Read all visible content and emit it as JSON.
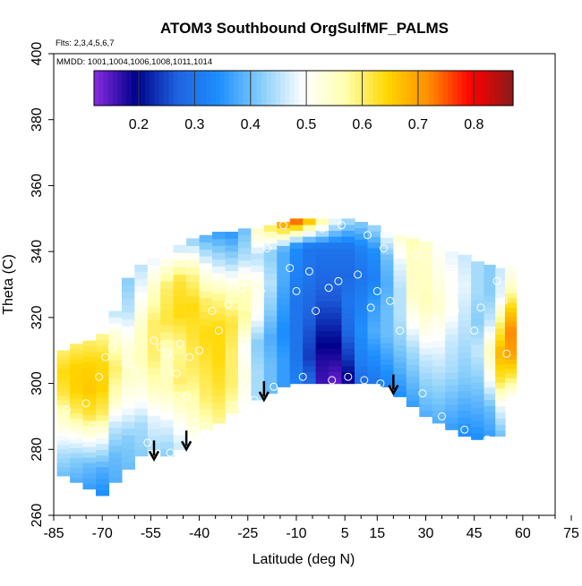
{
  "chart_data": {
    "type": "heatmap",
    "title": "ATOM3 Southbound OrgSulfMF_PALMS",
    "subtitle_flights": "Flts: 2,3,4,5,6,7",
    "subtitle_dates": "MMDD: 1001,1004,1006,1008,1011,1014",
    "xlabel": "Latitude (deg N)",
    "ylabel": "Theta (C)",
    "xlim": [
      -85,
      70
    ],
    "ylim": [
      260,
      400
    ],
    "x_ticks": [
      -85,
      -70,
      -55,
      -40,
      -25,
      -10,
      5,
      15,
      30,
      45,
      60,
      75
    ],
    "y_ticks": [
      260,
      280,
      300,
      320,
      340,
      360,
      380,
      400
    ],
    "colorbar": {
      "min": 0.12,
      "max": 0.87,
      "ticks": [
        0.2,
        0.3,
        0.4,
        0.5,
        0.6,
        0.7,
        0.8
      ],
      "tick_labels": [
        "0.2",
        "0.3",
        "0.4",
        "0.5",
        "0.6",
        "0.7",
        "0.8"
      ],
      "colors": [
        "#8a2be2",
        "#00008b",
        "#1e63e0",
        "#1e90ff",
        "#87cefa",
        "#ffffff",
        "#ffffb0",
        "#ffd700",
        "#ff8c00",
        "#ff0000",
        "#8b1a1a"
      ]
    },
    "field_columns": [
      {
        "lat": -82,
        "bottom": 272,
        "top": 310,
        "values": [
          0.4,
          0.44,
          0.5,
          0.56,
          0.62,
          0.64,
          0.6
        ]
      },
      {
        "lat": -78,
        "bottom": 270,
        "top": 312,
        "values": [
          0.38,
          0.42,
          0.5,
          0.6,
          0.65,
          0.65,
          0.6
        ]
      },
      {
        "lat": -74,
        "bottom": 268,
        "top": 313,
        "values": [
          0.36,
          0.4,
          0.5,
          0.62,
          0.66,
          0.65,
          0.6
        ]
      },
      {
        "lat": -70,
        "bottom": 266,
        "top": 315,
        "values": [
          0.34,
          0.38,
          0.48,
          0.6,
          0.65,
          0.64,
          0.58
        ]
      },
      {
        "lat": -66,
        "bottom": 270,
        "top": 322,
        "values": [
          0.38,
          0.4,
          0.46,
          0.56,
          0.6,
          0.55,
          0.45
        ]
      },
      {
        "lat": -62,
        "bottom": 274,
        "top": 332,
        "values": [
          0.4,
          0.42,
          0.5,
          0.55,
          0.52,
          0.45,
          0.42
        ]
      },
      {
        "lat": -58,
        "bottom": 278,
        "top": 336,
        "values": [
          0.42,
          0.44,
          0.52,
          0.56,
          0.55,
          0.5,
          0.45
        ]
      },
      {
        "lat": -54,
        "bottom": 280,
        "top": 338,
        "values": [
          0.44,
          0.48,
          0.56,
          0.6,
          0.6,
          0.55,
          0.48
        ]
      },
      {
        "lat": -50,
        "bottom": 278,
        "top": 340,
        "values": [
          0.42,
          0.48,
          0.56,
          0.55,
          0.62,
          0.6,
          0.48
        ]
      },
      {
        "lat": -46,
        "bottom": 280,
        "top": 342,
        "values": [
          0.46,
          0.52,
          0.6,
          0.58,
          0.64,
          0.62,
          0.45
        ]
      },
      {
        "lat": -42,
        "bottom": 283,
        "top": 344,
        "values": [
          0.5,
          0.56,
          0.6,
          0.62,
          0.64,
          0.58,
          0.42
        ]
      },
      {
        "lat": -38,
        "bottom": 286,
        "top": 345,
        "values": [
          0.55,
          0.6,
          0.62,
          0.64,
          0.6,
          0.5,
          0.38
        ]
      },
      {
        "lat": -34,
        "bottom": 288,
        "top": 346,
        "values": [
          0.58,
          0.62,
          0.64,
          0.64,
          0.58,
          0.46,
          0.36
        ]
      },
      {
        "lat": -30,
        "bottom": 291,
        "top": 346,
        "values": [
          0.56,
          0.6,
          0.6,
          0.62,
          0.55,
          0.44,
          0.35
        ]
      },
      {
        "lat": -26,
        "bottom": 293,
        "top": 347,
        "values": [
          0.5,
          0.52,
          0.5,
          0.58,
          0.55,
          0.45,
          0.4
        ]
      },
      {
        "lat": -22,
        "bottom": 295,
        "top": 347,
        "values": [
          0.44,
          0.44,
          0.42,
          0.5,
          0.52,
          0.45,
          0.55
        ]
      },
      {
        "lat": -18,
        "bottom": 297,
        "top": 348,
        "values": [
          0.4,
          0.4,
          0.38,
          0.42,
          0.45,
          0.42,
          0.62
        ]
      },
      {
        "lat": -14,
        "bottom": 299,
        "top": 349,
        "values": [
          0.36,
          0.36,
          0.34,
          0.36,
          0.38,
          0.38,
          0.72
        ]
      },
      {
        "lat": -10,
        "bottom": 300,
        "top": 350,
        "values": [
          0.32,
          0.3,
          0.3,
          0.3,
          0.32,
          0.34,
          0.78
        ]
      },
      {
        "lat": -6,
        "bottom": 300,
        "top": 350,
        "values": [
          0.28,
          0.24,
          0.26,
          0.28,
          0.3,
          0.3,
          0.7
        ]
      },
      {
        "lat": -2,
        "bottom": 300,
        "top": 350,
        "values": [
          0.16,
          0.18,
          0.22,
          0.26,
          0.28,
          0.3,
          0.6
        ]
      },
      {
        "lat": 2,
        "bottom": 300,
        "top": 350,
        "values": [
          0.14,
          0.18,
          0.22,
          0.26,
          0.28,
          0.3,
          0.5
        ]
      },
      {
        "lat": 6,
        "bottom": 300,
        "top": 350,
        "values": [
          0.18,
          0.24,
          0.28,
          0.3,
          0.28,
          0.3,
          0.45
        ]
      },
      {
        "lat": 10,
        "bottom": 300,
        "top": 349,
        "values": [
          0.28,
          0.32,
          0.34,
          0.32,
          0.3,
          0.32,
          0.42
        ]
      },
      {
        "lat": 14,
        "bottom": 300,
        "top": 348,
        "values": [
          0.3,
          0.34,
          0.38,
          0.36,
          0.32,
          0.34,
          0.44
        ]
      },
      {
        "lat": 18,
        "bottom": 299,
        "top": 346,
        "values": [
          0.32,
          0.36,
          0.4,
          0.4,
          0.38,
          0.4,
          0.5
        ]
      },
      {
        "lat": 22,
        "bottom": 296,
        "top": 345,
        "values": [
          0.34,
          0.38,
          0.42,
          0.45,
          0.45,
          0.48,
          0.54
        ]
      },
      {
        "lat": 26,
        "bottom": 293,
        "top": 344,
        "values": [
          0.36,
          0.4,
          0.44,
          0.5,
          0.55,
          0.55,
          0.56
        ]
      },
      {
        "lat": 30,
        "bottom": 290,
        "top": 343,
        "values": [
          0.38,
          0.42,
          0.46,
          0.52,
          0.56,
          0.55,
          0.54
        ]
      },
      {
        "lat": 34,
        "bottom": 288,
        "top": 342,
        "values": [
          0.38,
          0.42,
          0.46,
          0.5,
          0.54,
          0.52,
          0.5
        ]
      },
      {
        "lat": 38,
        "bottom": 286,
        "top": 340,
        "values": [
          0.36,
          0.4,
          0.44,
          0.46,
          0.5,
          0.5,
          0.48
        ]
      },
      {
        "lat": 42,
        "bottom": 284,
        "top": 339,
        "values": [
          0.34,
          0.38,
          0.42,
          0.44,
          0.46,
          0.48,
          0.46
        ]
      },
      {
        "lat": 46,
        "bottom": 283,
        "top": 337,
        "values": [
          0.34,
          0.38,
          0.42,
          0.46,
          0.42,
          0.44,
          0.44
        ]
      },
      {
        "lat": 50,
        "bottom": 284,
        "top": 336,
        "values": [
          0.36,
          0.4,
          0.5,
          0.56,
          0.46,
          0.42,
          0.42
        ]
      },
      {
        "lat": 53,
        "bottom": 284,
        "top": 335,
        "values": [
          0.4,
          0.48,
          0.62,
          0.68,
          0.6,
          0.48,
          0.46
        ]
      },
      {
        "lat": 56,
        "bottom": 296,
        "top": 336,
        "values": [
          0.5,
          0.62,
          0.7,
          0.72,
          0.65,
          0.55,
          0.5
        ]
      }
    ],
    "sample_points": [
      {
        "lat": -81,
        "theta": 292
      },
      {
        "lat": -79,
        "theta": 284
      },
      {
        "lat": -75,
        "theta": 294
      },
      {
        "lat": -73,
        "theta": 287
      },
      {
        "lat": -71,
        "theta": 302
      },
      {
        "lat": -69,
        "theta": 308
      },
      {
        "lat": -67,
        "theta": 311
      },
      {
        "lat": -65,
        "theta": 313
      },
      {
        "lat": -62,
        "theta": 306
      },
      {
        "lat": -60,
        "theta": 304
      },
      {
        "lat": -58,
        "theta": 298
      },
      {
        "lat": -56,
        "theta": 282
      },
      {
        "lat": -54,
        "theta": 313
      },
      {
        "lat": -52,
        "theta": 311
      },
      {
        "lat": -50,
        "theta": 309
      },
      {
        "lat": -49,
        "theta": 279
      },
      {
        "lat": -47,
        "theta": 303
      },
      {
        "lat": -46,
        "theta": 312
      },
      {
        "lat": -44,
        "theta": 296
      },
      {
        "lat": -43,
        "theta": 308
      },
      {
        "lat": -40,
        "theta": 310
      },
      {
        "lat": -38,
        "theta": 287
      },
      {
        "lat": -36,
        "theta": 322
      },
      {
        "lat": -34,
        "theta": 316
      },
      {
        "lat": -31,
        "theta": 324
      },
      {
        "lat": -29,
        "theta": 293
      },
      {
        "lat": -27,
        "theta": 329
      },
      {
        "lat": -25,
        "theta": 331
      },
      {
        "lat": -23,
        "theta": 295
      },
      {
        "lat": -21,
        "theta": 328
      },
      {
        "lat": -19,
        "theta": 341
      },
      {
        "lat": -17,
        "theta": 299
      },
      {
        "lat": -14,
        "theta": 348
      },
      {
        "lat": -12,
        "theta": 335
      },
      {
        "lat": -10,
        "theta": 328
      },
      {
        "lat": -8,
        "theta": 302
      },
      {
        "lat": -6,
        "theta": 334
      },
      {
        "lat": -4,
        "theta": 322
      },
      {
        "lat": -2,
        "theta": 347
      },
      {
        "lat": 0,
        "theta": 329
      },
      {
        "lat": 1,
        "theta": 301
      },
      {
        "lat": 3,
        "theta": 331
      },
      {
        "lat": 4,
        "theta": 348
      },
      {
        "lat": 6,
        "theta": 302
      },
      {
        "lat": 9,
        "theta": 333
      },
      {
        "lat": 11,
        "theta": 301
      },
      {
        "lat": 12,
        "theta": 345
      },
      {
        "lat": 13,
        "theta": 323
      },
      {
        "lat": 15,
        "theta": 328
      },
      {
        "lat": 16,
        "theta": 300
      },
      {
        "lat": 17,
        "theta": 341
      },
      {
        "lat": 19,
        "theta": 325
      },
      {
        "lat": 22,
        "theta": 316
      },
      {
        "lat": 27,
        "theta": 339
      },
      {
        "lat": 29,
        "theta": 297
      },
      {
        "lat": 31,
        "theta": 317
      },
      {
        "lat": 33,
        "theta": 319
      },
      {
        "lat": 35,
        "theta": 290
      },
      {
        "lat": 37,
        "theta": 331
      },
      {
        "lat": 39,
        "theta": 322
      },
      {
        "lat": 42,
        "theta": 286
      },
      {
        "lat": 45,
        "theta": 316
      },
      {
        "lat": 47,
        "theta": 323
      },
      {
        "lat": 49,
        "theta": 283
      },
      {
        "lat": 52,
        "theta": 331
      },
      {
        "lat": 54,
        "theta": 325
      },
      {
        "lat": 55,
        "theta": 309
      },
      {
        "lat": 56,
        "theta": 285
      }
    ],
    "arrows": [
      {
        "lat": -54,
        "theta": 277
      },
      {
        "lat": -44,
        "theta": 280
      },
      {
        "lat": -20,
        "theta": 295
      },
      {
        "lat": 20,
        "theta": 297
      }
    ]
  }
}
